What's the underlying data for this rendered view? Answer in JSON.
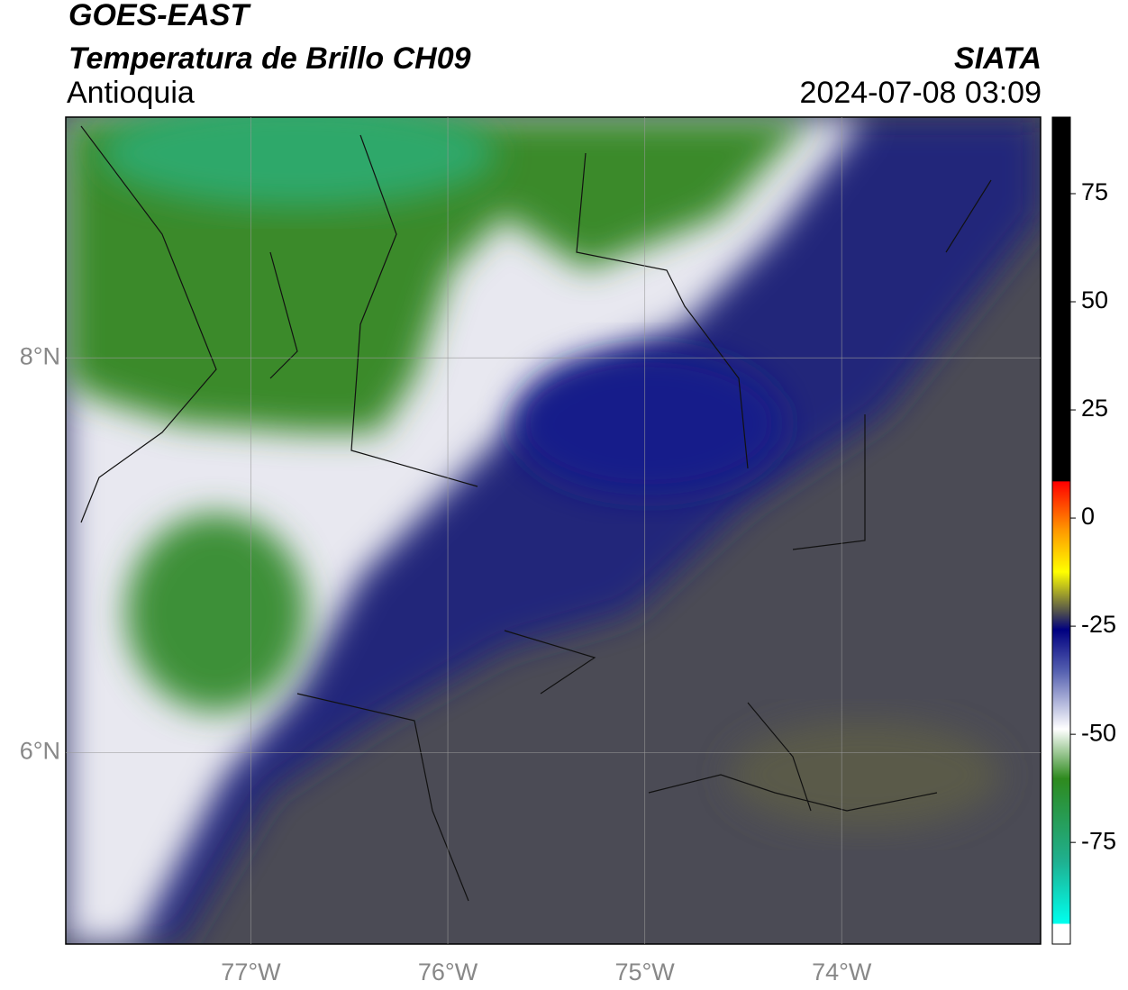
{
  "header": {
    "title": "GOES-EAST",
    "subtitle": "Temperatura de Brillo CH09",
    "region": "Antioquia",
    "source": "SIATA",
    "datetime": "2024-07-08 03:09"
  },
  "map": {
    "lon_range": [
      -77.94,
      -72.99
    ],
    "lat_range": [
      5.03,
      9.22
    ],
    "lon_ticks": [
      {
        "value": -77,
        "label": "77°W"
      },
      {
        "value": -76,
        "label": "76°W"
      },
      {
        "value": -75,
        "label": "75°W"
      },
      {
        "value": -74,
        "label": "74°W"
      }
    ],
    "lat_ticks": [
      {
        "value": 8,
        "label": "8°N"
      },
      {
        "value": 6,
        "label": "6°N"
      }
    ]
  },
  "colorbar": {
    "range": [
      -98.5,
      92.7
    ],
    "ticks": [
      75,
      50,
      25,
      0,
      -25,
      -50,
      -75
    ]
  }
}
